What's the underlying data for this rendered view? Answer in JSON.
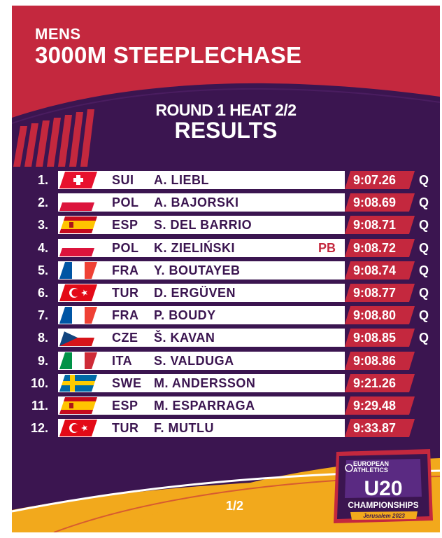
{
  "header": {
    "event_label": "MENS",
    "event_title": "3000M STEEPLECHASE",
    "round": "ROUND 1 HEAT 2/2",
    "subtitle": "RESULTS"
  },
  "results": [
    {
      "rank": "1.",
      "flag": "sui-flag-icon",
      "nat": "SUI",
      "name": "A. LIEBL",
      "note": "",
      "time": "9:07.26",
      "q": "Q"
    },
    {
      "rank": "2.",
      "flag": "pol-flag-icon",
      "nat": "POL",
      "name": "A. BAJORSKI",
      "note": "",
      "time": "9:08.69",
      "q": "Q"
    },
    {
      "rank": "3.",
      "flag": "esp-flag-icon",
      "nat": "ESP",
      "name": "S. DEL BARRIO",
      "note": "",
      "time": "9:08.71",
      "q": "Q"
    },
    {
      "rank": "4.",
      "flag": "pol-flag-icon",
      "nat": "POL",
      "name": "K. ZIELIŃSKI",
      "note": "PB",
      "time": "9:08.72",
      "q": "Q"
    },
    {
      "rank": "5.",
      "flag": "fra-flag-icon",
      "nat": "FRA",
      "name": "Y. BOUTAYEB",
      "note": "",
      "time": "9:08.74",
      "q": "Q"
    },
    {
      "rank": "6.",
      "flag": "tur-flag-icon",
      "nat": "TUR",
      "name": "D. ERGÜVEN",
      "note": "",
      "time": "9:08.77",
      "q": "Q"
    },
    {
      "rank": "7.",
      "flag": "fra-flag-icon",
      "nat": "FRA",
      "name": "P. BOUDY",
      "note": "",
      "time": "9:08.80",
      "q": "Q"
    },
    {
      "rank": "8.",
      "flag": "cze-flag-icon",
      "nat": "CZE",
      "name": "Š. KAVAN",
      "note": "",
      "time": "9:08.85",
      "q": "Q"
    },
    {
      "rank": "9.",
      "flag": "ita-flag-icon",
      "nat": "ITA",
      "name": "S. VALDUGA",
      "note": "",
      "time": "9:08.86",
      "q": ""
    },
    {
      "rank": "10.",
      "flag": "swe-flag-icon",
      "nat": "SWE",
      "name": "M. ANDERSSON",
      "note": "",
      "time": "9:21.26",
      "q": ""
    },
    {
      "rank": "11.",
      "flag": "esp-flag-icon",
      "nat": "ESP",
      "name": "M. ESPARRAGA",
      "note": "",
      "time": "9:29.48",
      "q": ""
    },
    {
      "rank": "12.",
      "flag": "tur-flag-icon",
      "nat": "TUR",
      "name": "F. MUTLU",
      "note": "",
      "time": "9:33.87",
      "q": ""
    }
  ],
  "footer": {
    "page_indicator": "1/2"
  },
  "logo": {
    "line1": "EUROPEAN",
    "line2": "ATHLETICS",
    "main": "U20",
    "sub": "CHAMPIONSHIPS",
    "place": "Jerusalem 2023"
  },
  "colors": {
    "purple": "#3b1550",
    "red": "#c4283e",
    "yellow": "#f2a91c",
    "white": "#ffffff"
  }
}
